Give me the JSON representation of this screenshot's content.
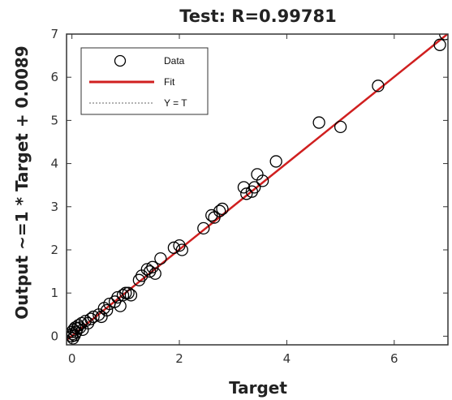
{
  "chart_data": {
    "type": "scatter",
    "title": "Test: R=0.99781",
    "xlabel": "Target",
    "ylabel": "Output ~=1 * Target + 0.0089",
    "xlim": [
      -0.1,
      7
    ],
    "ylim": [
      -0.2,
      7
    ],
    "xticks": [
      0,
      2,
      4,
      6
    ],
    "yticks": [
      0,
      1,
      2,
      3,
      4,
      5,
      6,
      7
    ],
    "grid": false,
    "legend_position": "top-left",
    "fit": {
      "slope": 1,
      "intercept": 0.0089
    },
    "series": [
      {
        "name": "Data",
        "marker": "open-circle",
        "color": "#000000",
        "points": [
          [
            0.0,
            0.0
          ],
          [
            0.01,
            0.05
          ],
          [
            0.02,
            -0.05
          ],
          [
            0.0,
            0.1
          ],
          [
            0.03,
            0.15
          ],
          [
            0.05,
            0.02
          ],
          [
            0.06,
            0.2
          ],
          [
            0.08,
            0.1
          ],
          [
            0.1,
            0.18
          ],
          [
            0.12,
            0.25
          ],
          [
            0.15,
            0.2
          ],
          [
            0.18,
            0.3
          ],
          [
            0.2,
            0.15
          ],
          [
            0.25,
            0.35
          ],
          [
            0.3,
            0.3
          ],
          [
            0.35,
            0.4
          ],
          [
            0.4,
            0.45
          ],
          [
            0.5,
            0.5
          ],
          [
            0.55,
            0.45
          ],
          [
            0.6,
            0.65
          ],
          [
            0.65,
            0.6
          ],
          [
            0.7,
            0.75
          ],
          [
            0.8,
            0.8
          ],
          [
            0.85,
            0.9
          ],
          [
            0.9,
            0.7
          ],
          [
            0.95,
            0.95
          ],
          [
            1.0,
            1.0
          ],
          [
            1.05,
            1.0
          ],
          [
            1.1,
            0.95
          ],
          [
            1.25,
            1.3
          ],
          [
            1.3,
            1.4
          ],
          [
            1.4,
            1.55
          ],
          [
            1.45,
            1.5
          ],
          [
            1.5,
            1.6
          ],
          [
            1.55,
            1.45
          ],
          [
            1.65,
            1.8
          ],
          [
            1.9,
            2.05
          ],
          [
            2.0,
            2.1
          ],
          [
            2.05,
            2.0
          ],
          [
            2.45,
            2.5
          ],
          [
            2.6,
            2.8
          ],
          [
            2.65,
            2.75
          ],
          [
            2.75,
            2.9
          ],
          [
            2.8,
            2.95
          ],
          [
            3.2,
            3.45
          ],
          [
            3.25,
            3.3
          ],
          [
            3.35,
            3.35
          ],
          [
            3.4,
            3.45
          ],
          [
            3.45,
            3.75
          ],
          [
            3.55,
            3.6
          ],
          [
            3.8,
            4.05
          ],
          [
            4.6,
            4.95
          ],
          [
            5.0,
            4.85
          ],
          [
            5.7,
            5.8
          ],
          [
            6.85,
            6.75
          ],
          [
            6.95,
            7.0
          ]
        ]
      },
      {
        "name": "Fit",
        "color": "#d01f1f"
      },
      {
        "name": "Y = T",
        "color": "#999999"
      }
    ]
  }
}
